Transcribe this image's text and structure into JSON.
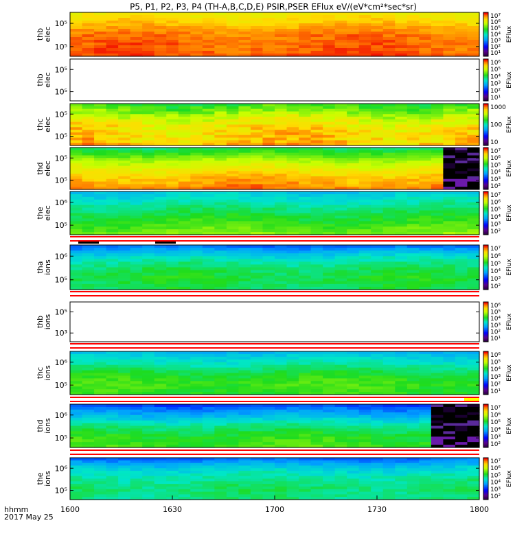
{
  "chart_data": {
    "type": "heatmap",
    "title": "P5, P1, P2, P3, P4 (TH-A,B,C,D,E) PSIR,PSER EFlux eV/(eV*cm²*sec*sr)",
    "xlabel": "hhmm",
    "date": "2017 May 25",
    "x_ticks": [
      "1600",
      "1630",
      "1700",
      "1730",
      "1800"
    ],
    "x_range": [
      "16:00",
      "18:00"
    ],
    "colorbar_label": "EFlux",
    "colormap": "rainbow (purple-blue-cyan-green-yellow-red)",
    "panels": [
      {
        "probe": "thb",
        "species": "elec",
        "ylabel": [
          "thb",
          "elec"
        ],
        "yticks": [
          "10⁵",
          "10⁵"
        ],
        "colorbar_ticks": [
          "10⁷",
          "10⁶",
          "10⁵",
          "10⁴",
          "10³",
          "10²",
          "10¹"
        ],
        "colorbar_range_log10": [
          0,
          7.5
        ],
        "data_present": true,
        "level_profile_log10": [
          6.2,
          6.6,
          7.0,
          7.1,
          7.2
        ]
      },
      {
        "probe": "thb",
        "species": "elec",
        "ylabel": [
          "thb",
          "elec"
        ],
        "yticks": [
          "10⁵",
          "10⁵"
        ],
        "colorbar_ticks": [
          "10⁶",
          "10⁵",
          "10⁴",
          "10³",
          "10²",
          "10¹"
        ],
        "colorbar_range_log10": [
          0,
          6.5
        ],
        "data_present": false,
        "level_profile_log10": []
      },
      {
        "probe": "thc",
        "species": "elec",
        "ylabel": [
          "thc",
          "elec"
        ],
        "yticks": [
          "10⁵",
          "10⁵"
        ],
        "colorbar_ticks": [
          "1000",
          "100",
          "10"
        ],
        "colorbar_range_log10": [
          0,
          3.5
        ],
        "data_present": true,
        "level_profile_log10": [
          2.2,
          2.6,
          2.9,
          3.0,
          3.1
        ]
      },
      {
        "probe": "thd",
        "species": "elec",
        "ylabel": [
          "thd",
          "elec"
        ],
        "yticks": [
          "10⁵",
          "10⁵"
        ],
        "colorbar_ticks": [
          "10⁷",
          "10⁶",
          "10⁵",
          "10⁴",
          "10³",
          "10²"
        ],
        "colorbar_range_log10": [
          1.5,
          7.5
        ],
        "data_present": true,
        "level_profile_log10": [
          5.0,
          5.8,
          6.4,
          6.8,
          7.1
        ],
        "dark_region_from": "17:48"
      },
      {
        "probe": "the",
        "species": "elec",
        "ylabel": [
          "the",
          "elec"
        ],
        "yticks": [
          "10⁶",
          "10⁵"
        ],
        "colorbar_ticks": [
          "10⁷",
          "10⁶",
          "10⁵",
          "10⁴",
          "10³",
          "10²"
        ],
        "colorbar_range_log10": [
          1.5,
          7.5
        ],
        "data_present": true,
        "level_profile_log10": [
          4.2,
          4.6,
          5.0,
          5.3,
          5.7
        ]
      },
      {
        "probe": "tha",
        "species": "ions",
        "ylabel": [
          "tha",
          "ions"
        ],
        "yticks": [
          "10⁶",
          "10⁵"
        ],
        "colorbar_ticks": [
          "10⁷",
          "10⁶",
          "10⁵",
          "10⁴",
          "10³",
          "10²"
        ],
        "colorbar_range_log10": [
          1.5,
          7.5
        ],
        "data_present": true,
        "level_profile_log10": [
          3.5,
          4.4,
          4.9,
          5.1,
          5.0
        ]
      },
      {
        "probe": "thb",
        "species": "ions",
        "ylabel": [
          "thb",
          "ions"
        ],
        "yticks": [
          "10⁵",
          "10³"
        ],
        "colorbar_ticks": [
          "10⁶",
          "10⁵",
          "10⁴",
          "10³",
          "10²",
          "10¹"
        ],
        "colorbar_range_log10": [
          0,
          6.5
        ],
        "data_present": false,
        "level_profile_log10": []
      },
      {
        "probe": "thc",
        "species": "ions",
        "ylabel": [
          "thc",
          "ions"
        ],
        "yticks": [
          "10⁶",
          "10⁵"
        ],
        "colorbar_ticks": [
          "10⁶",
          "10⁵",
          "10⁴",
          "10³",
          "10²",
          "10¹"
        ],
        "colorbar_range_log10": [
          0,
          6.5
        ],
        "data_present": true,
        "level_profile_log10": [
          2.8,
          3.3,
          3.9,
          4.2,
          4.1
        ]
      },
      {
        "probe": "thd",
        "species": "ions",
        "ylabel": [
          "thd",
          "ions"
        ],
        "yticks": [
          "10⁶",
          "10⁵"
        ],
        "colorbar_ticks": [
          "10⁷",
          "10⁶",
          "10⁵",
          "10⁴",
          "10³",
          "10²"
        ],
        "colorbar_range_log10": [
          1.5,
          7.5
        ],
        "data_present": true,
        "level_profile_log10": [
          3.3,
          4.0,
          4.8,
          5.2,
          5.4
        ],
        "dark_region_from": "17:43"
      },
      {
        "probe": "the",
        "species": "ions",
        "ylabel": [
          "the",
          "ions"
        ],
        "yticks": [
          "10⁶",
          "10⁵"
        ],
        "colorbar_ticks": [
          "10⁷",
          "10⁶",
          "10⁵",
          "10⁴",
          "10³",
          "10²"
        ],
        "colorbar_range_log10": [
          1.5,
          7.5
        ],
        "data_present": true,
        "level_profile_log10": [
          3.5,
          4.3,
          4.7,
          4.9,
          4.8
        ]
      }
    ]
  }
}
